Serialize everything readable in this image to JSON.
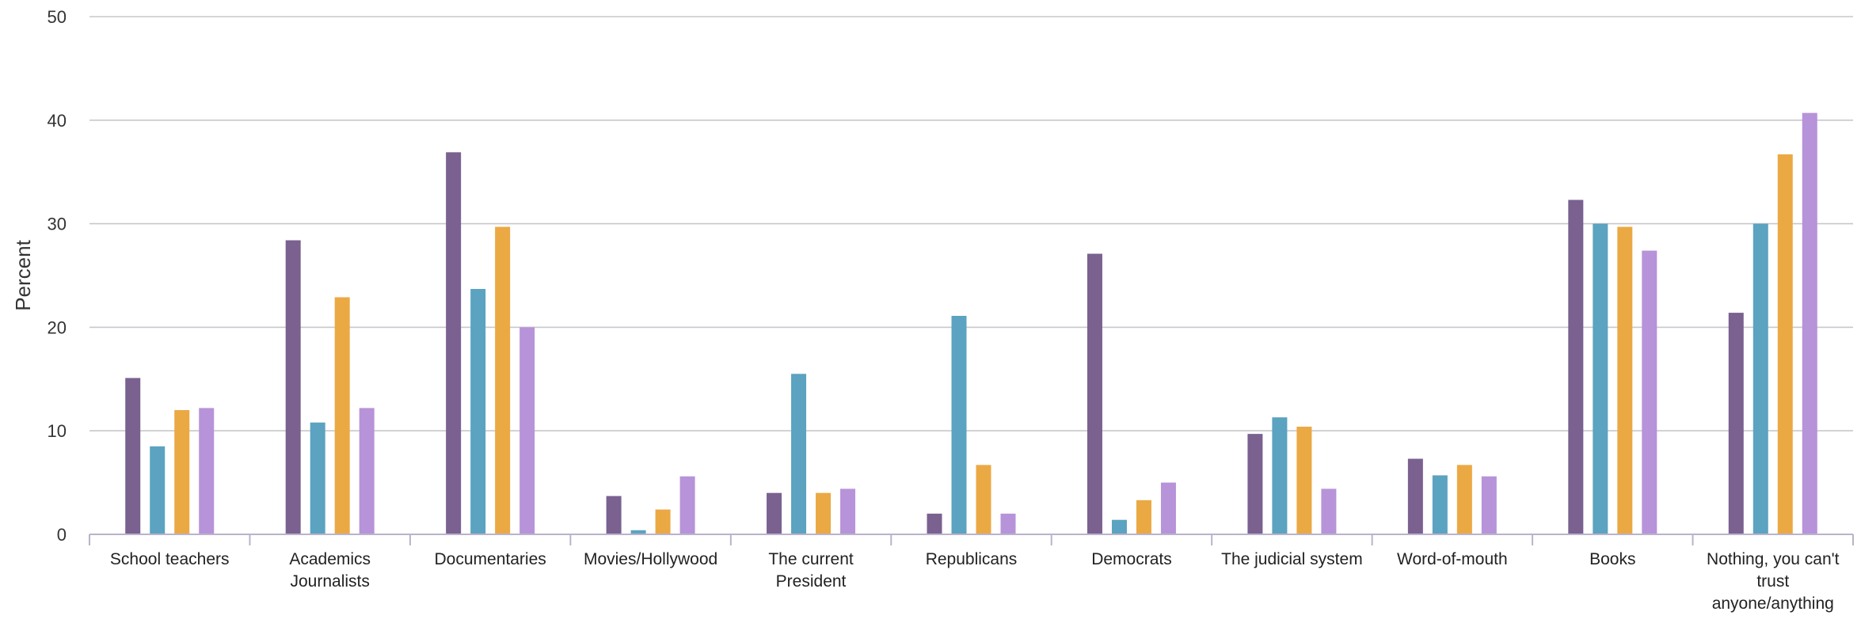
{
  "chart_data": {
    "type": "bar",
    "ylabel": "Percent",
    "xlabel": "",
    "ylim": [
      0,
      50
    ],
    "yticks": [
      0,
      10,
      20,
      30,
      40,
      50
    ],
    "grid": true,
    "legend": "none",
    "categories": [
      [
        "School teachers"
      ],
      [
        "Academics",
        "Journalists"
      ],
      [
        "Documentaries"
      ],
      [
        "Movies/Hollywood"
      ],
      [
        "The current",
        "President"
      ],
      [
        "Republicans"
      ],
      [
        "Democrats"
      ],
      [
        "The judicial system"
      ],
      [
        "Word-of-mouth"
      ],
      [
        "Books"
      ],
      [
        "Nothing, you can't",
        "trust",
        "anyone/anything"
      ]
    ],
    "series": [
      {
        "color": "#7a6190",
        "values": [
          15.1,
          28.4,
          36.9,
          3.7,
          4.0,
          2.0,
          27.1,
          9.7,
          7.3,
          32.3,
          21.4
        ]
      },
      {
        "color": "#5ba3c0",
        "values": [
          8.5,
          10.8,
          23.7,
          0.4,
          15.5,
          21.1,
          1.4,
          11.3,
          5.7,
          30.0,
          30.0
        ]
      },
      {
        "color": "#eba944",
        "values": [
          12.0,
          22.9,
          29.7,
          2.4,
          4.0,
          6.7,
          3.3,
          10.4,
          6.7,
          29.7,
          36.7
        ]
      },
      {
        "color": "#b793d9",
        "values": [
          12.2,
          12.2,
          20.0,
          5.6,
          4.4,
          2.0,
          5.0,
          4.4,
          5.6,
          27.4,
          40.7
        ]
      }
    ]
  }
}
